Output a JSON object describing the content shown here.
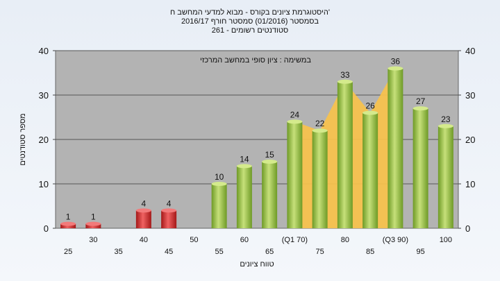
{
  "chart_data": {
    "type": "bar",
    "title_lines": [
      "היסטוגרמת ציונים בקורס - מבוא למדעי המחשב ח'",
      "בסמסטר  (01/2016)  סמסטר חורף 2016/17",
      "261 - סטודנטים רשומים"
    ],
    "subtitle": "במשימה : ציון סופי במחשב המרכזי",
    "xlabel": "טווח ציונים",
    "ylabel": "מספר סטודנטים",
    "ylim": [
      0,
      40
    ],
    "yticks": [
      0,
      10,
      20,
      30,
      40
    ],
    "categories": [
      "25",
      "30",
      "35",
      "40",
      "45",
      "50",
      "55",
      "60",
      "65",
      "(Q1 70)",
      "75",
      "80",
      "85",
      "(Q3 90)",
      "95",
      "100"
    ],
    "series": [
      {
        "values": [
          1,
          1,
          0,
          4,
          4,
          0,
          10,
          14,
          15,
          24,
          22,
          33,
          26,
          36,
          27,
          23
        ]
      }
    ],
    "labels_shown": [
      true,
      true,
      false,
      true,
      true,
      false,
      true,
      true,
      true,
      true,
      true,
      true,
      true,
      true,
      true,
      true
    ],
    "failing_below": 55,
    "grid": true,
    "colors": {
      "fail": "#d42a2a",
      "pass": "#8cbe3c",
      "quartile_area": "#f7c24e",
      "plot_bg": "#b3b3b3",
      "grid": "#555555"
    }
  }
}
